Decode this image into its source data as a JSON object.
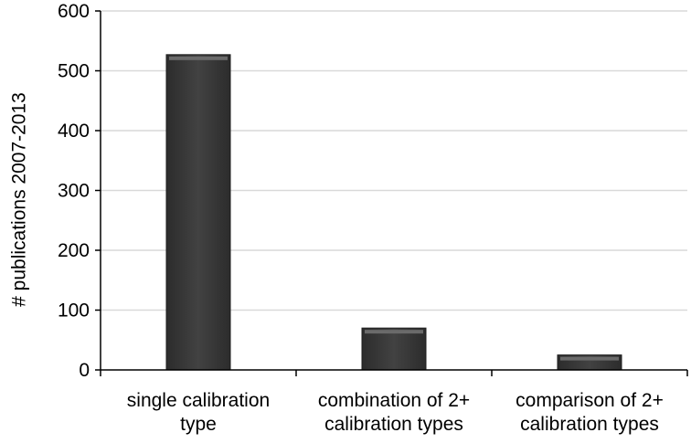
{
  "chart_data": {
    "type": "bar",
    "categories": [
      [
        "single calibration",
        "type"
      ],
      [
        "combination of 2+",
        "calibration types"
      ],
      [
        "comparison of 2+",
        "calibration types"
      ]
    ],
    "values": [
      527,
      70,
      25
    ],
    "title": "",
    "xlabel": "",
    "ylabel": "# publications 2007-2013",
    "ylim": [
      0,
      600
    ],
    "yticks": [
      0,
      100,
      200,
      300,
      400,
      500,
      600
    ],
    "grid": true,
    "legend": "none",
    "colors": {
      "bar": "#3a3a3a",
      "bar_top": "#6a6a6a",
      "bar_edge": "#1e1e1e",
      "grid": "#d9d9d9",
      "axis": "#000000"
    }
  }
}
